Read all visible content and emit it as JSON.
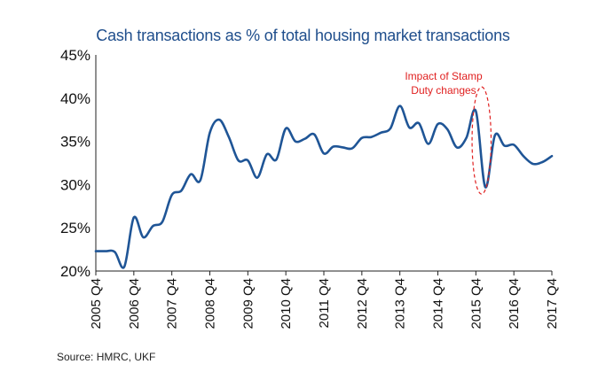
{
  "source": "Source: HMRC, UKF",
  "chart_data": {
    "type": "line",
    "title": "Cash transactions as % of total housing market transactions",
    "xlabel": "",
    "ylabel": "",
    "ylim": [
      20,
      45
    ],
    "y_ticks": [
      "20%",
      "25%",
      "30%",
      "35%",
      "40%",
      "45%"
    ],
    "y_tick_values": [
      20,
      25,
      30,
      35,
      40,
      45
    ],
    "x_tick_labels": [
      "2005 Q4",
      "2006 Q4",
      "2007 Q4",
      "2008 Q4",
      "2009 Q4",
      "2010 Q4",
      "2011 Q4",
      "2012 Q4",
      "2013 Q4",
      "2014 Q4",
      "2015 Q4",
      "2016 Q4",
      "2017 Q4"
    ],
    "grid": false,
    "legend": "none",
    "colors": {
      "line": "#1f5596",
      "title": "#1f4e8c",
      "annotation": "#e02020"
    },
    "annotation": {
      "lines": [
        "Impact of Stamp",
        "Duty changes"
      ],
      "x_range": [
        39.6,
        41.6
      ],
      "y_range": [
        28.9,
        41.3
      ]
    },
    "series": [
      {
        "x": [
          0,
          1,
          2,
          3,
          4,
          5,
          6,
          7,
          8,
          9,
          10,
          11,
          12,
          13,
          14,
          15,
          16,
          17,
          18,
          19,
          20,
          21,
          22,
          23,
          24,
          25,
          26,
          27,
          28,
          29,
          30,
          31,
          32,
          33,
          34,
          35,
          36,
          37,
          38,
          39,
          40,
          41,
          42,
          43,
          44,
          45,
          46,
          47,
          48
        ],
        "values": [
          22.3,
          22.3,
          22.2,
          20.5,
          26.2,
          23.9,
          25.2,
          25.7,
          28.8,
          29.3,
          31.2,
          30.5,
          36.0,
          37.5,
          35.5,
          32.8,
          32.8,
          30.8,
          33.5,
          32.9,
          36.5,
          35.0,
          35.3,
          35.8,
          33.6,
          34.4,
          34.3,
          34.2,
          35.4,
          35.5,
          36.0,
          36.5,
          39.1,
          36.6,
          37.1,
          34.7,
          37.0,
          36.4,
          34.3,
          35.4,
          38.5,
          29.7,
          35.7,
          34.5,
          34.6,
          33.3,
          32.4,
          32.6,
          33.3
        ]
      }
    ]
  }
}
